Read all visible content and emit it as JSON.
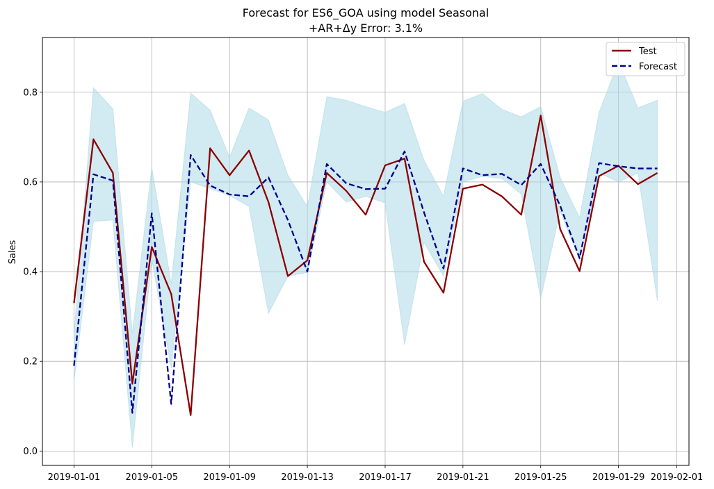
{
  "chart_data": {
    "type": "line",
    "title_line1": "Forecast for ES6_GOA using model Seasonal",
    "title_line2": "+AR+Δy Error: 3.1%",
    "xlabel": "",
    "ylabel": "Sales",
    "x": [
      "2019-01-01",
      "2019-01-02",
      "2019-01-03",
      "2019-01-04",
      "2019-01-05",
      "2019-01-06",
      "2019-01-07",
      "2019-01-08",
      "2019-01-09",
      "2019-01-10",
      "2019-01-11",
      "2019-01-12",
      "2019-01-13",
      "2019-01-14",
      "2019-01-15",
      "2019-01-16",
      "2019-01-17",
      "2019-01-18",
      "2019-01-19",
      "2019-01-20",
      "2019-01-21",
      "2019-01-22",
      "2019-01-23",
      "2019-01-24",
      "2019-01-25",
      "2019-01-26",
      "2019-01-27",
      "2019-01-28",
      "2019-01-29",
      "2019-01-30",
      "2019-01-31"
    ],
    "series": [
      {
        "name": "Test",
        "color": "#8b0000",
        "dash": "solid",
        "values": [
          0.33,
          0.695,
          0.62,
          0.15,
          0.455,
          0.35,
          0.08,
          0.675,
          0.615,
          0.67,
          0.555,
          0.39,
          0.425,
          0.62,
          0.58,
          0.527,
          0.637,
          0.652,
          0.422,
          0.353,
          0.585,
          0.594,
          0.568,
          0.527,
          0.748,
          0.495,
          0.401,
          0.613,
          0.636,
          0.595,
          0.62
        ]
      },
      {
        "name": "Forecast",
        "color": "#00008b",
        "dash": "dashed",
        "values": [
          0.19,
          0.617,
          0.603,
          0.085,
          0.53,
          0.105,
          0.66,
          0.592,
          0.572,
          0.568,
          0.61,
          0.515,
          0.4,
          0.64,
          0.597,
          0.584,
          0.585,
          0.668,
          0.532,
          0.407,
          0.63,
          0.615,
          0.618,
          0.593,
          0.64,
          0.547,
          0.43,
          0.642,
          0.635,
          0.63,
          0.63
        ]
      }
    ],
    "band": {
      "color": "#add8e6",
      "upper": [
        0.26,
        0.81,
        0.763,
        0.262,
        0.632,
        0.373,
        0.798,
        0.76,
        0.655,
        0.765,
        0.738,
        0.615,
        0.545,
        0.79,
        0.782,
        0.768,
        0.755,
        0.775,
        0.648,
        0.568,
        0.78,
        0.797,
        0.762,
        0.745,
        0.768,
        0.61,
        0.52,
        0.755,
        0.868,
        0.765,
        0.782
      ],
      "lower": [
        0.155,
        0.512,
        0.515,
        0.008,
        0.428,
        0.185,
        0.6,
        0.585,
        0.57,
        0.545,
        0.307,
        0.39,
        0.398,
        0.6,
        0.555,
        0.568,
        0.553,
        0.237,
        0.465,
        0.39,
        0.6,
        0.612,
        0.608,
        0.573,
        0.34,
        0.535,
        0.425,
        0.62,
        0.6,
        0.62,
        0.335
      ]
    },
    "xticks": [
      "2019-01-01",
      "2019-01-05",
      "2019-01-09",
      "2019-01-13",
      "2019-01-17",
      "2019-01-21",
      "2019-01-25",
      "2019-01-29",
      "2019-02-01"
    ],
    "yticks": [
      0.0,
      0.2,
      0.4,
      0.6,
      0.8
    ],
    "ytick_labels": [
      "0.0",
      "0.2",
      "0.4",
      "0.6",
      "0.8"
    ],
    "xlim": [
      "2018-12-30T09:00",
      "2019-02-01T15:00"
    ],
    "ylim": [
      -0.032,
      0.922
    ],
    "grid": true,
    "legend": "upper-right"
  }
}
